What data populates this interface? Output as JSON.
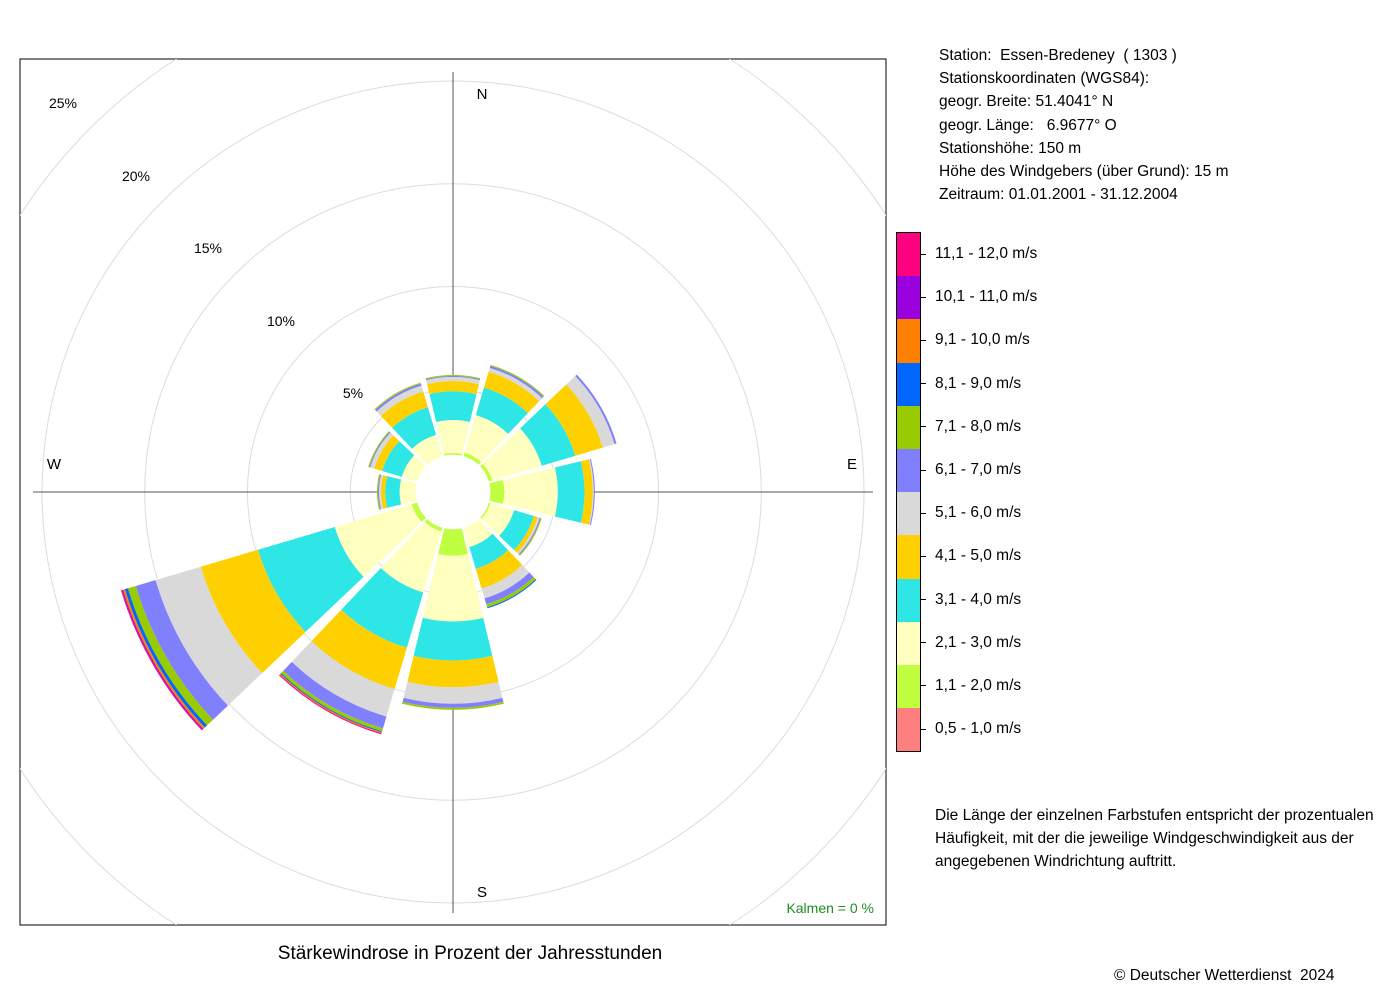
{
  "chart_data": {
    "type": "windrose",
    "title": "Stärkewindrose in Prozent der Jahresstunden",
    "directions": [
      "N",
      "30°",
      "60°",
      "E",
      "120°",
      "150°",
      "S",
      "210°",
      "240°",
      "W",
      "300°",
      "330°"
    ],
    "direction_angles": [
      0,
      30,
      60,
      90,
      120,
      150,
      180,
      210,
      240,
      270,
      300,
      330
    ],
    "compass_labels": [
      "N",
      "E",
      "S",
      "W"
    ],
    "radial_ticks": [
      "5%",
      "10%",
      "15%",
      "20%",
      "25%"
    ],
    "radial_tick_values": [
      5,
      10,
      15,
      20,
      25
    ],
    "calm_label": "Kalmen  =  0 %",
    "speed_classes": [
      {
        "label": "0,5 - 1,0 m/s",
        "color": "#ff7f7f"
      },
      {
        "label": "1,1 - 2,0 m/s",
        "color": "#bfff3f"
      },
      {
        "label": "2,1 - 3,0 m/s",
        "color": "#ffffbf"
      },
      {
        "label": "3,1 - 4,0 m/s",
        "color": "#2ee6e6"
      },
      {
        "label": "4,1 - 5,0 m/s",
        "color": "#ffd000"
      },
      {
        "label": "5,1 - 6,0 m/s",
        "color": "#d9d9d9"
      },
      {
        "label": "6,1 - 7,0 m/s",
        "color": "#8080ff"
      },
      {
        "label": "7,1 - 8,0 m/s",
        "color": "#99cc00"
      },
      {
        "label": "8,1 - 9,0 m/s",
        "color": "#0066ff"
      },
      {
        "label": "9,1 - 10,0 m/s",
        "color": "#ff8000"
      },
      {
        "label": "10,1 - 11,0 m/s",
        "color": "#9900dd"
      },
      {
        "label": "11,1 - 12,0 m/s",
        "color": "#ff0080"
      }
    ],
    "series": [
      {
        "direction": "N",
        "cumulative": [
          0.7,
          1.9,
          3.5,
          4.9,
          5.4,
          5.6,
          5.65,
          5.7,
          5.7,
          5.7,
          5.7,
          5.7
        ]
      },
      {
        "direction": "30°",
        "cumulative": [
          0.7,
          2.0,
          3.9,
          5.3,
          6.1,
          6.3,
          6.4,
          6.45,
          6.45,
          6.45,
          6.45,
          6.45
        ]
      },
      {
        "direction": "60°",
        "cumulative": [
          0.7,
          2.0,
          4.5,
          6.2,
          7.6,
          8.2,
          8.3,
          8.3,
          8.3,
          8.3,
          8.3,
          8.3
        ]
      },
      {
        "direction": "E",
        "cumulative": [
          0.7,
          2.5,
          5.1,
          6.4,
          6.8,
          6.85,
          6.9,
          6.9,
          6.9,
          6.9,
          6.9,
          6.9
        ]
      },
      {
        "direction": "120°",
        "cumulative": [
          0.7,
          1.9,
          3.1,
          4.1,
          4.3,
          4.4,
          4.45,
          4.5,
          4.5,
          4.5,
          4.5,
          4.5
        ]
      },
      {
        "direction": "150°",
        "cumulative": [
          0.7,
          1.5,
          2.8,
          3.9,
          4.9,
          5.4,
          5.7,
          5.85,
          5.9,
          5.9,
          5.9,
          5.9
        ]
      },
      {
        "direction": "S",
        "cumulative": [
          0.7,
          3.1,
          6.3,
          8.2,
          9.5,
          10.3,
          10.5,
          10.6,
          10.6,
          10.6,
          10.6,
          10.6
        ]
      },
      {
        "direction": "210°",
        "cumulative": [
          0.7,
          2.0,
          5.1,
          7.9,
          10.0,
          11.4,
          12.0,
          12.15,
          12.2,
          12.25,
          12.25,
          12.3
        ]
      },
      {
        "direction": "240°",
        "cumulative": [
          0.7,
          2.1,
          6.0,
          9.9,
          12.8,
          15.1,
          16.1,
          16.5,
          16.65,
          16.75,
          16.8,
          16.85
        ]
      },
      {
        "direction": "W",
        "cumulative": [
          0.7,
          1.6,
          2.6,
          3.3,
          3.5,
          3.6,
          3.65,
          3.7,
          3.7,
          3.7,
          3.7,
          3.7
        ]
      },
      {
        "direction": "300°",
        "cumulative": [
          0.7,
          1.4,
          2.6,
          3.6,
          4.0,
          4.2,
          4.25,
          4.3,
          4.3,
          4.3,
          4.3,
          4.3
        ]
      },
      {
        "direction": "330°",
        "cumulative": [
          0.7,
          1.5,
          2.9,
          4.3,
          5.1,
          5.4,
          5.5,
          5.55,
          5.55,
          5.55,
          5.55,
          5.55
        ]
      }
    ],
    "grid": true
  },
  "station_info": [
    "Station:  Essen-Bredeney  ( 1303 )",
    "Stationskoordinaten (WGS84):",
    "geogr. Breite: 51.4041° N",
    "geogr. Länge:   6.9677° O",
    "Stationshöhe: 150 m",
    "Höhe des Windgebers (über Grund): 15 m",
    "Zeitraum: 01.01.2001 - 31.12.2004"
  ],
  "description": "Die Länge der einzelnen Farbstufen entspricht der prozentualen Häufigkeit, mit der die jeweilige Windgeschwindigkeit aus der angegebenen Windrichtung auftritt.",
  "copyright": "© Deutscher Wetterdienst  2024"
}
